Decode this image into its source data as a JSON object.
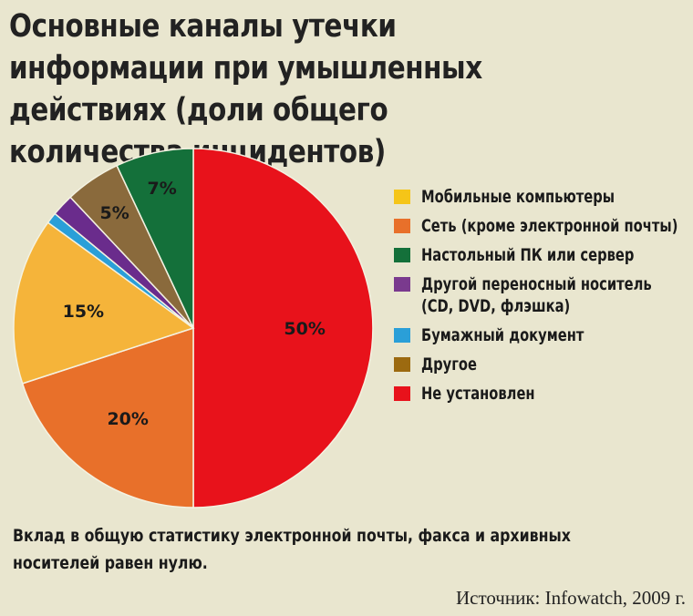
{
  "title": "Основные каналы утечки информации при умышленных действиях (доли общего количества инцидентов)",
  "chart_data": {
    "type": "pie",
    "slices": [
      {
        "label": "Не установлен",
        "value": 50,
        "value_label": "50%",
        "color": "#e8121b"
      },
      {
        "label": "Сеть (кроме электронной почты)",
        "value": 20,
        "value_label": "20%",
        "color": "#e8702a"
      },
      {
        "label": "Мобильные компьютеры",
        "value": 15,
        "value_label": "15%",
        "color": "#f5b43a"
      },
      {
        "label": "Бумажный документ",
        "value": 1,
        "value_label": "",
        "color": "#2a9fd8"
      },
      {
        "label": "Другой переносный носитель (CD, DVD, флэшка)",
        "value": 2,
        "value_label": "",
        "color": "#6a2c8c"
      },
      {
        "label": "Другое",
        "value": 5,
        "value_label": "5%",
        "color": "#8a6a3c"
      },
      {
        "label": "Настольный ПК или сервер",
        "value": 7,
        "value_label": "7%",
        "color": "#14703a"
      }
    ]
  },
  "legend": [
    {
      "text": "Мобильные компьютеры",
      "color": "#f5c518"
    },
    {
      "text": "Сеть (кроме электронной почты)",
      "color": "#e8702a"
    },
    {
      "text": "Настольный ПК или сервер",
      "color": "#14703a"
    },
    {
      "text": "Другой переносный носитель (CD, DVD, флэшка)",
      "color": "#7a3a8e"
    },
    {
      "text": "Бумажный документ",
      "color": "#2a9fd8"
    },
    {
      "text": "Другое",
      "color": "#9c6a10"
    },
    {
      "text": "Не установлен",
      "color": "#e8121b"
    }
  ],
  "note": "Вклад в общую статистику электронной почты, факса и архивных носителей равен нулю.",
  "source": "Источник: Infowatch, 2009 г."
}
